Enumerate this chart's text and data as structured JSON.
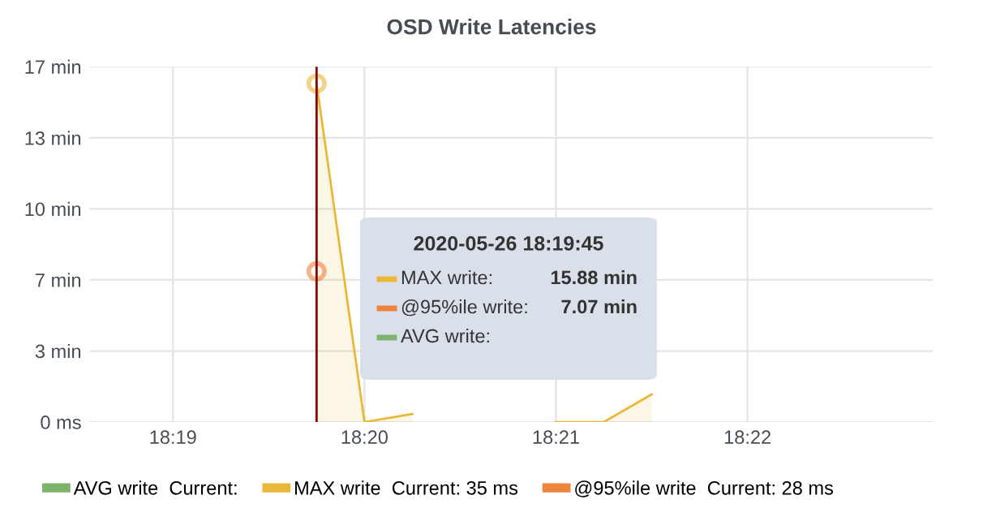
{
  "chart_data": {
    "type": "line",
    "title": "OSD Write Latencies",
    "x": [
      18.329167,
      18.333333,
      18.3375,
      18.341667,
      18.345833,
      18.35,
      18.354167,
      18.358333
    ],
    "series": [
      {
        "name": "AVG write  Current:",
        "color": "#7eb26d",
        "values": [
          null,
          null,
          null,
          null,
          null,
          null,
          null,
          null
        ]
      },
      {
        "name": "MAX write  Current: 35 ms",
        "color": "#eab839",
        "type": "area",
        "values": [
          15.88,
          0,
          0.38,
          null,
          null,
          0,
          0,
          1.3
        ]
      },
      {
        "name": "@95%ile write  Current: 28 ms",
        "color": "#ef843c",
        "marker": "circle",
        "values": [
          7.07,
          null,
          null,
          null,
          null,
          null,
          null,
          null
        ]
      }
    ],
    "xlim": [
      18.3094,
      18.3828
    ],
    "xticks": [
      {
        "value": 18.316667,
        "label": "18:19"
      },
      {
        "value": 18.333333,
        "label": "18:20"
      },
      {
        "value": 18.35,
        "label": "18:21"
      },
      {
        "value": 18.366667,
        "label": "18:22"
      }
    ],
    "ylim": [
      0,
      16.67
    ],
    "yticks": [
      {
        "value": 0,
        "label": "0 ms"
      },
      {
        "value": 3.33,
        "label": "3 min"
      },
      {
        "value": 6.67,
        "label": "7 min"
      },
      {
        "value": 10,
        "label": "10 min"
      },
      {
        "value": 13.33,
        "label": "13 min"
      },
      {
        "value": 16.67,
        "label": "17 min"
      }
    ],
    "ref_lines": [
      {
        "axis": "x",
        "value": 18.329167,
        "color": "#8b0000"
      }
    ],
    "annotations": [
      "2020-05-26 18:19:45",
      "MAX write:",
      "15.88 min",
      "@95%ile write:",
      "7.07 min",
      "AVG write:"
    ],
    "grid": true,
    "legend": "bottom",
    "line_style": "solid"
  }
}
